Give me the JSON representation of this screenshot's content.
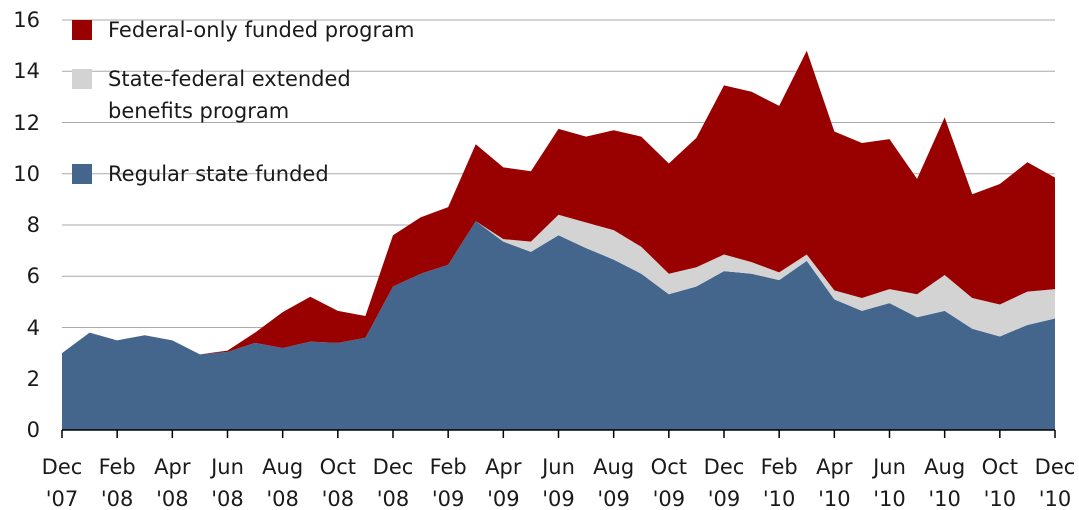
{
  "chart_data": {
    "type": "stacked-area",
    "categories": [
      "Dec '07",
      null,
      "Feb '08",
      null,
      "Apr '08",
      null,
      "Jun '08",
      null,
      "Aug '08",
      null,
      "Oct '08",
      null,
      "Dec '08",
      null,
      "Feb '09",
      null,
      "Apr '09",
      null,
      "Jun '09",
      null,
      "Aug '09",
      null,
      "Oct '09",
      null,
      "Dec '09",
      null,
      "Feb '10",
      null,
      "Apr '10",
      null,
      "Jun '10",
      null,
      "Aug '10",
      null,
      "Oct '10",
      null,
      "Dec '10"
    ],
    "series": [
      {
        "name": "Regular state funded",
        "color": "#44658c",
        "values": [
          3.0,
          3.8,
          3.5,
          3.7,
          3.5,
          2.95,
          3.05,
          3.4,
          3.2,
          3.45,
          3.4,
          3.6,
          5.6,
          6.1,
          6.45,
          8.15,
          7.35,
          6.95,
          7.6,
          7.1,
          6.65,
          6.1,
          5.3,
          5.6,
          6.2,
          6.1,
          5.85,
          6.6,
          5.1,
          4.65,
          4.95,
          4.4,
          4.65,
          3.95,
          3.65,
          4.1,
          4.35
        ]
      },
      {
        "name": "State-federal extended benefits program",
        "color": "#d3d3d3",
        "values": [
          0,
          0,
          0,
          0,
          0,
          0,
          0,
          0,
          0,
          0,
          0,
          0,
          0,
          0,
          0,
          0,
          0.1,
          0.4,
          0.8,
          1.0,
          1.15,
          1.05,
          0.8,
          0.75,
          0.65,
          0.45,
          0.3,
          0.25,
          0.35,
          0.5,
          0.55,
          0.9,
          1.4,
          1.2,
          1.25,
          1.3,
          1.15
        ]
      },
      {
        "name": "Federal-only funded program",
        "color": "#990000",
        "values": [
          0,
          0,
          0,
          0,
          0,
          0,
          0.05,
          0.4,
          1.4,
          1.75,
          1.25,
          0.85,
          2.0,
          2.2,
          2.25,
          3.0,
          2.8,
          2.75,
          3.35,
          3.35,
          3.9,
          4.3,
          4.3,
          5.05,
          6.6,
          6.65,
          6.5,
          7.95,
          6.2,
          6.05,
          5.85,
          4.5,
          6.15,
          4.05,
          4.7,
          5.05,
          4.35
        ]
      }
    ],
    "ylim": [
      0,
      16
    ],
    "yticks": [
      0,
      2,
      4,
      6,
      8,
      10,
      12,
      14,
      16
    ],
    "grid": true
  }
}
